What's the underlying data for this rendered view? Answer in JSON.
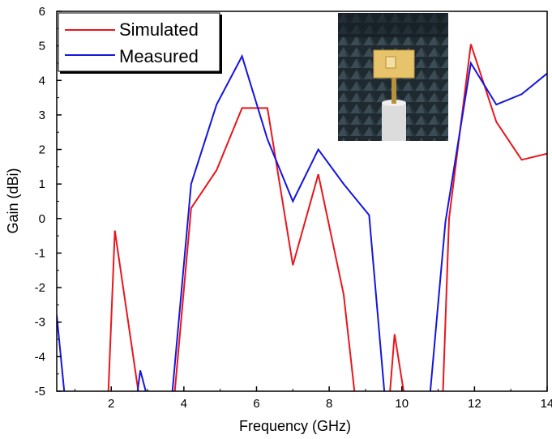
{
  "chart_data": {
    "type": "line",
    "xlabel": "Frequency (GHz)",
    "ylabel": "Gain (dBi)",
    "xlim": [
      0.5,
      14
    ],
    "ylim": [
      -5,
      6
    ],
    "x_ticks": [
      2,
      4,
      6,
      8,
      10,
      12,
      14
    ],
    "x_tick_labels": [
      "2",
      "4",
      "6",
      "8",
      "10",
      "12",
      "14"
    ],
    "y_ticks": [
      -5,
      -4,
      -3,
      -2,
      -1,
      0,
      1,
      2,
      3,
      4,
      5,
      6
    ],
    "y_tick_labels": [
      "-5",
      "-4",
      "-3",
      "-2",
      "-1",
      "0",
      "1",
      "2",
      "3",
      "4",
      "5",
      "6"
    ],
    "grid": false,
    "legend_position": "top-left",
    "series": [
      {
        "name": "Simulated",
        "color": "#e8161c",
        "points": [
          [
            1.9,
            -5.6
          ],
          [
            2.1,
            -0.35
          ],
          [
            2.8,
            -5.4
          ],
          [
            3.7,
            -5.6
          ],
          [
            4.2,
            0.3
          ],
          [
            4.9,
            1.4
          ],
          [
            5.6,
            3.2
          ],
          [
            6.3,
            3.2
          ],
          [
            7.0,
            -1.35
          ],
          [
            7.7,
            1.28
          ],
          [
            8.4,
            -2.2
          ],
          [
            8.8,
            -6.0
          ],
          [
            9.6,
            -6.0
          ],
          [
            9.8,
            -3.35
          ],
          [
            10.2,
            -6.0
          ],
          [
            11.1,
            -6.0
          ],
          [
            11.3,
            0.0
          ],
          [
            11.9,
            5.05
          ],
          [
            12.6,
            2.8
          ],
          [
            13.3,
            1.7
          ],
          [
            14.0,
            1.88
          ]
        ]
      },
      {
        "name": "Measured",
        "color": "#1515e0",
        "points": [
          [
            0.5,
            -2.8
          ],
          [
            0.8,
            -6.0
          ],
          [
            2.6,
            -6.0
          ],
          [
            2.8,
            -4.4
          ],
          [
            3.2,
            -6.0
          ],
          [
            3.6,
            -6.0
          ],
          [
            4.2,
            1.0
          ],
          [
            4.9,
            3.3
          ],
          [
            5.6,
            4.7
          ],
          [
            6.3,
            2.3
          ],
          [
            7.0,
            0.5
          ],
          [
            7.7,
            2.0
          ],
          [
            8.4,
            1.0
          ],
          [
            9.1,
            0.1
          ],
          [
            9.6,
            -6.0
          ],
          [
            10.7,
            -6.0
          ],
          [
            11.2,
            -0.1
          ],
          [
            11.9,
            4.5
          ],
          [
            12.6,
            3.3
          ],
          [
            13.3,
            3.6
          ],
          [
            14.0,
            4.2
          ]
        ]
      }
    ]
  },
  "inset_photo": {
    "subject": "antenna-prototype-in-anechoic-chamber",
    "colors": {
      "chamber": "#1f2a30",
      "absorber": "#3a4a52",
      "board": "#e8c470",
      "mount": "#d8d8d8"
    }
  }
}
